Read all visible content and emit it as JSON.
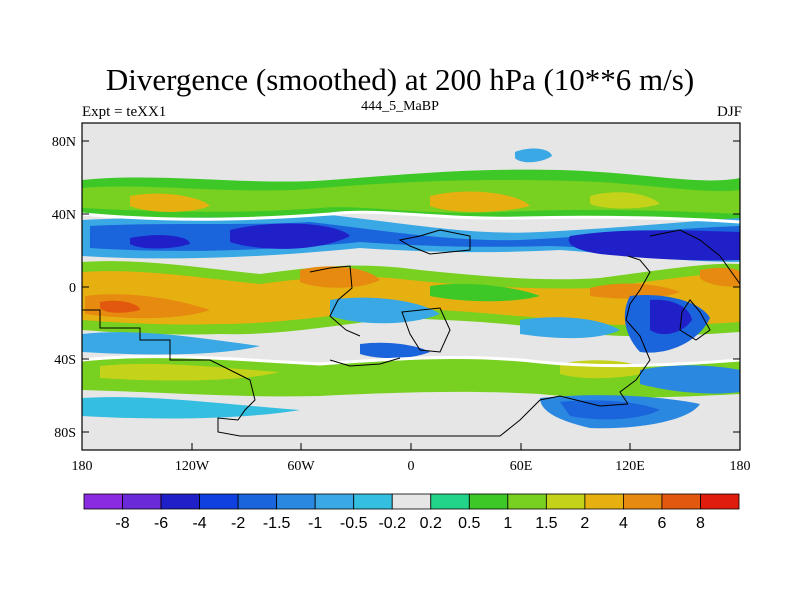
{
  "figure": {
    "title": "Divergence (smoothed) at 200 hPa (10**6 m/s)",
    "left_label": "Expt = teXX1",
    "center_label": "444_5_MaBP",
    "right_label": "DJF"
  },
  "axes": {
    "x_ticks": [
      "180",
      "120W",
      "60W",
      "0",
      "60E",
      "120E",
      "180"
    ],
    "y_ticks": [
      "80N",
      "40N",
      "0",
      "40S",
      "80S"
    ]
  },
  "colorbar": {
    "labels": [
      "-8",
      "-6",
      "-4",
      "-2",
      "-1.5",
      "-1",
      "-0.5",
      "-0.2",
      "0.2",
      "0.5",
      "1",
      "1.5",
      "2",
      "4",
      "6",
      "8"
    ],
    "colors": [
      "#8a2be2",
      "#6a2ad8",
      "#2020c8",
      "#1040e0",
      "#1a64dc",
      "#2a88e0",
      "#3aa8e4",
      "#34bee0",
      "#e6e6e6",
      "#22d48a",
      "#3ec828",
      "#78d020",
      "#c4d21a",
      "#e6b010",
      "#e68a10",
      "#e2580e",
      "#e01c0c"
    ]
  },
  "chart_data": {
    "type": "heatmap",
    "title": "Divergence (smoothed) at 200 hPa (10**6 m/s)",
    "xlabel": "",
    "ylabel": "",
    "x_range": [
      -180,
      180
    ],
    "y_range": [
      -90,
      90
    ],
    "levels": [
      -8,
      -6,
      -4,
      -2,
      -1.5,
      -1,
      -0.5,
      -0.2,
      0.2,
      0.5,
      1,
      1.5,
      2,
      4,
      6,
      8
    ]
  }
}
